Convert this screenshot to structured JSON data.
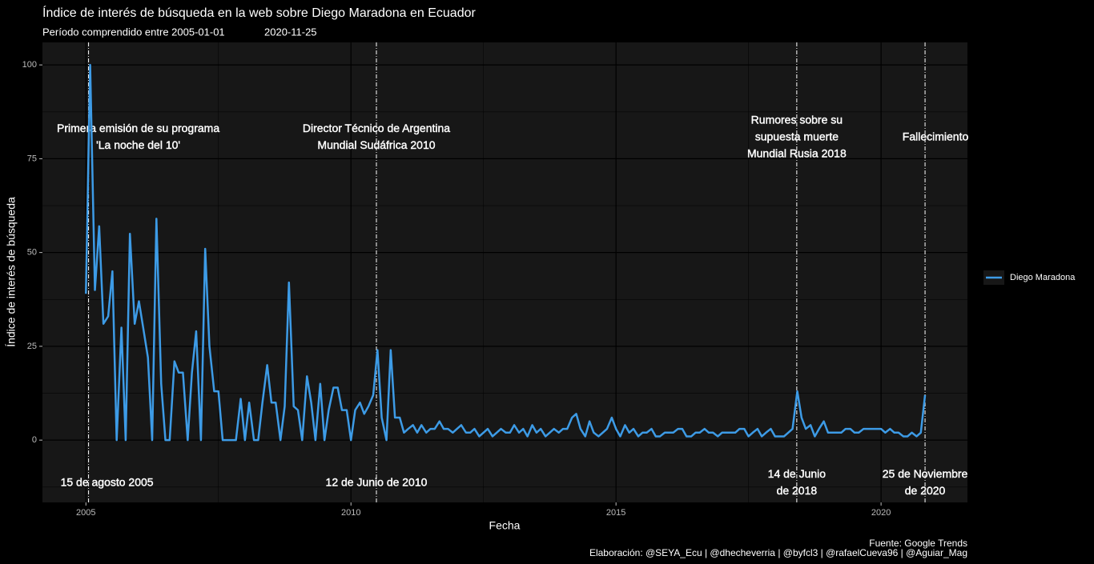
{
  "chart_data": {
    "type": "line",
    "title": "Índice de interés de búsqueda en la web sobre Diego Maradona en Ecuador",
    "subtitle": [
      "Período comprendido entre 2005-01-01",
      "2020-11-25"
    ],
    "x_label": "Fecha",
    "y_label": "Índice de interés de búsqueda",
    "caption": [
      "Fuente: Google Trends",
      "Elaboración: @SEYA_Ecu | @dhecheverria | @byfcl3 | @rafaelCueva96 | @Aguiar_Mag"
    ],
    "xlim": [
      2004.18,
      2021.63
    ],
    "xticks": [
      2005,
      2010,
      2015,
      2020
    ],
    "ylim": [
      -16.6,
      106
    ],
    "yticks": [
      0,
      25,
      50,
      75,
      100
    ],
    "grid": true,
    "legend": "right",
    "x": [
      2005,
      2005.08,
      2005.17,
      2005.25,
      2005.33,
      2005.42,
      2005.5,
      2005.58,
      2005.67,
      2005.75,
      2005.83,
      2005.92,
      2006,
      2006.08,
      2006.17,
      2006.25,
      2006.33,
      2006.42,
      2006.5,
      2006.58,
      2006.67,
      2006.75,
      2006.83,
      2006.92,
      2007,
      2007.08,
      2007.17,
      2007.25,
      2007.33,
      2007.42,
      2007.5,
      2007.58,
      2007.67,
      2007.75,
      2007.83,
      2007.92,
      2008,
      2008.08,
      2008.17,
      2008.25,
      2008.33,
      2008.42,
      2008.5,
      2008.58,
      2008.67,
      2008.75,
      2008.83,
      2008.92,
      2009,
      2009.08,
      2009.17,
      2009.25,
      2009.33,
      2009.42,
      2009.5,
      2009.58,
      2009.67,
      2009.75,
      2009.83,
      2009.92,
      2010,
      2010.08,
      2010.17,
      2010.25,
      2010.33,
      2010.42,
      2010.5,
      2010.58,
      2010.67,
      2010.75,
      2010.83,
      2010.92,
      2011,
      2011.08,
      2011.17,
      2011.25,
      2011.33,
      2011.42,
      2011.5,
      2011.58,
      2011.67,
      2011.75,
      2011.83,
      2011.92,
      2012,
      2012.08,
      2012.17,
      2012.25,
      2012.33,
      2012.42,
      2012.5,
      2012.58,
      2012.67,
      2012.75,
      2012.83,
      2012.92,
      2013,
      2013.08,
      2013.17,
      2013.25,
      2013.33,
      2013.42,
      2013.5,
      2013.58,
      2013.67,
      2013.75,
      2013.83,
      2013.92,
      2014,
      2014.08,
      2014.17,
      2014.25,
      2014.33,
      2014.42,
      2014.5,
      2014.58,
      2014.67,
      2014.75,
      2014.83,
      2014.92,
      2015,
      2015.08,
      2015.17,
      2015.25,
      2015.33,
      2015.42,
      2015.5,
      2015.58,
      2015.67,
      2015.75,
      2015.83,
      2015.92,
      2016,
      2016.08,
      2016.17,
      2016.25,
      2016.33,
      2016.42,
      2016.5,
      2016.58,
      2016.67,
      2016.75,
      2016.83,
      2016.92,
      2017,
      2017.08,
      2017.17,
      2017.25,
      2017.33,
      2017.42,
      2017.5,
      2017.58,
      2017.67,
      2017.75,
      2017.83,
      2017.92,
      2018,
      2018.08,
      2018.17,
      2018.25,
      2018.33,
      2018.42,
      2018.5,
      2018.58,
      2018.67,
      2018.75,
      2018.83,
      2018.92,
      2019,
      2019.08,
      2019.17,
      2019.25,
      2019.33,
      2019.42,
      2019.5,
      2019.58,
      2019.67,
      2019.75,
      2019.83,
      2019.92,
      2020,
      2020.08,
      2020.17,
      2020.25,
      2020.33,
      2020.42,
      2020.5,
      2020.58,
      2020.67,
      2020.75,
      2020.83
    ],
    "series": [
      {
        "name": "Diego Maradona",
        "color": "#3d9be6",
        "values": [
          39,
          100,
          40,
          57,
          31,
          33,
          45,
          0,
          30,
          0,
          55,
          31,
          37,
          30,
          22,
          0,
          59,
          15,
          0,
          0,
          21,
          18,
          18,
          0,
          18,
          29,
          0,
          51,
          25,
          13,
          13,
          0,
          0,
          0,
          0,
          11,
          0,
          10,
          0,
          0,
          10,
          20,
          10,
          10,
          0,
          9,
          42,
          9,
          8,
          0,
          17,
          10,
          0,
          15,
          0,
          8,
          14,
          14,
          8,
          8,
          0,
          8,
          10,
          7,
          9,
          12,
          24,
          6,
          0,
          24,
          6,
          6,
          2,
          3,
          4,
          2,
          4,
          2,
          3,
          3,
          5,
          3,
          3,
          2,
          3,
          4,
          2,
          2,
          3,
          1,
          2,
          3,
          1,
          2,
          3,
          2,
          2,
          4,
          2,
          3,
          1,
          4,
          2,
          3,
          1,
          2,
          3,
          2,
          3,
          3,
          6,
          7,
          3,
          1,
          5,
          2,
          1,
          2,
          3,
          6,
          3,
          1,
          4,
          2,
          3,
          1,
          2,
          2,
          3,
          1,
          1,
          2,
          2,
          2,
          3,
          3,
          1,
          1,
          2,
          2,
          3,
          2,
          2,
          1,
          2,
          2,
          2,
          2,
          3,
          3,
          1,
          2,
          3,
          1,
          2,
          3,
          1,
          1,
          1,
          2,
          3,
          13,
          6,
          3,
          4,
          1,
          3,
          5,
          2,
          2,
          2,
          2,
          3,
          3,
          2,
          2,
          3,
          3,
          3,
          3,
          3,
          2,
          3,
          2,
          2,
          1,
          1,
          2,
          1,
          2,
          12
        ]
      }
    ],
    "events": [
      {
        "x": 2005.05,
        "label": [
          "Primera emisión de su programa",
          "'La noche del 10'"
        ],
        "date": [
          "15 de agosto 2005"
        ]
      },
      {
        "x": 2010.48,
        "label": [
          "Director Técnico de Argentina",
          "Mundial Sudáfrica 2010"
        ],
        "date": [
          "12 de Junio de 2010"
        ]
      },
      {
        "x": 2018.41,
        "label": [
          "Rumores sobre su",
          "supuesta muerte",
          "Mundial Rusia 2018"
        ],
        "date": [
          "14 de Junio",
          "de 2018"
        ]
      },
      {
        "x": 2020.83,
        "label": [
          "Fallecimiento"
        ],
        "date": [
          "25 de Noviembre",
          "de 2020"
        ]
      }
    ]
  }
}
